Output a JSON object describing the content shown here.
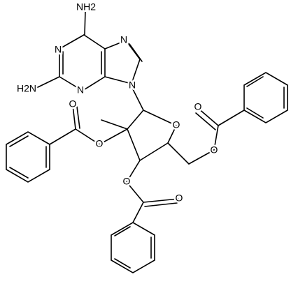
{
  "atoms": {
    "nh2_top": "NH2",
    "h2n_left": "H2N",
    "n1": "N",
    "n3": "N",
    "n7": "N",
    "n9": "N",
    "ring_o": "O",
    "o2_ester": "O",
    "o2_carbonyl": "O",
    "o3_ester": "O",
    "o3_carbonyl": "O",
    "o5_ester": "O",
    "o5_carbonyl": "O"
  }
}
